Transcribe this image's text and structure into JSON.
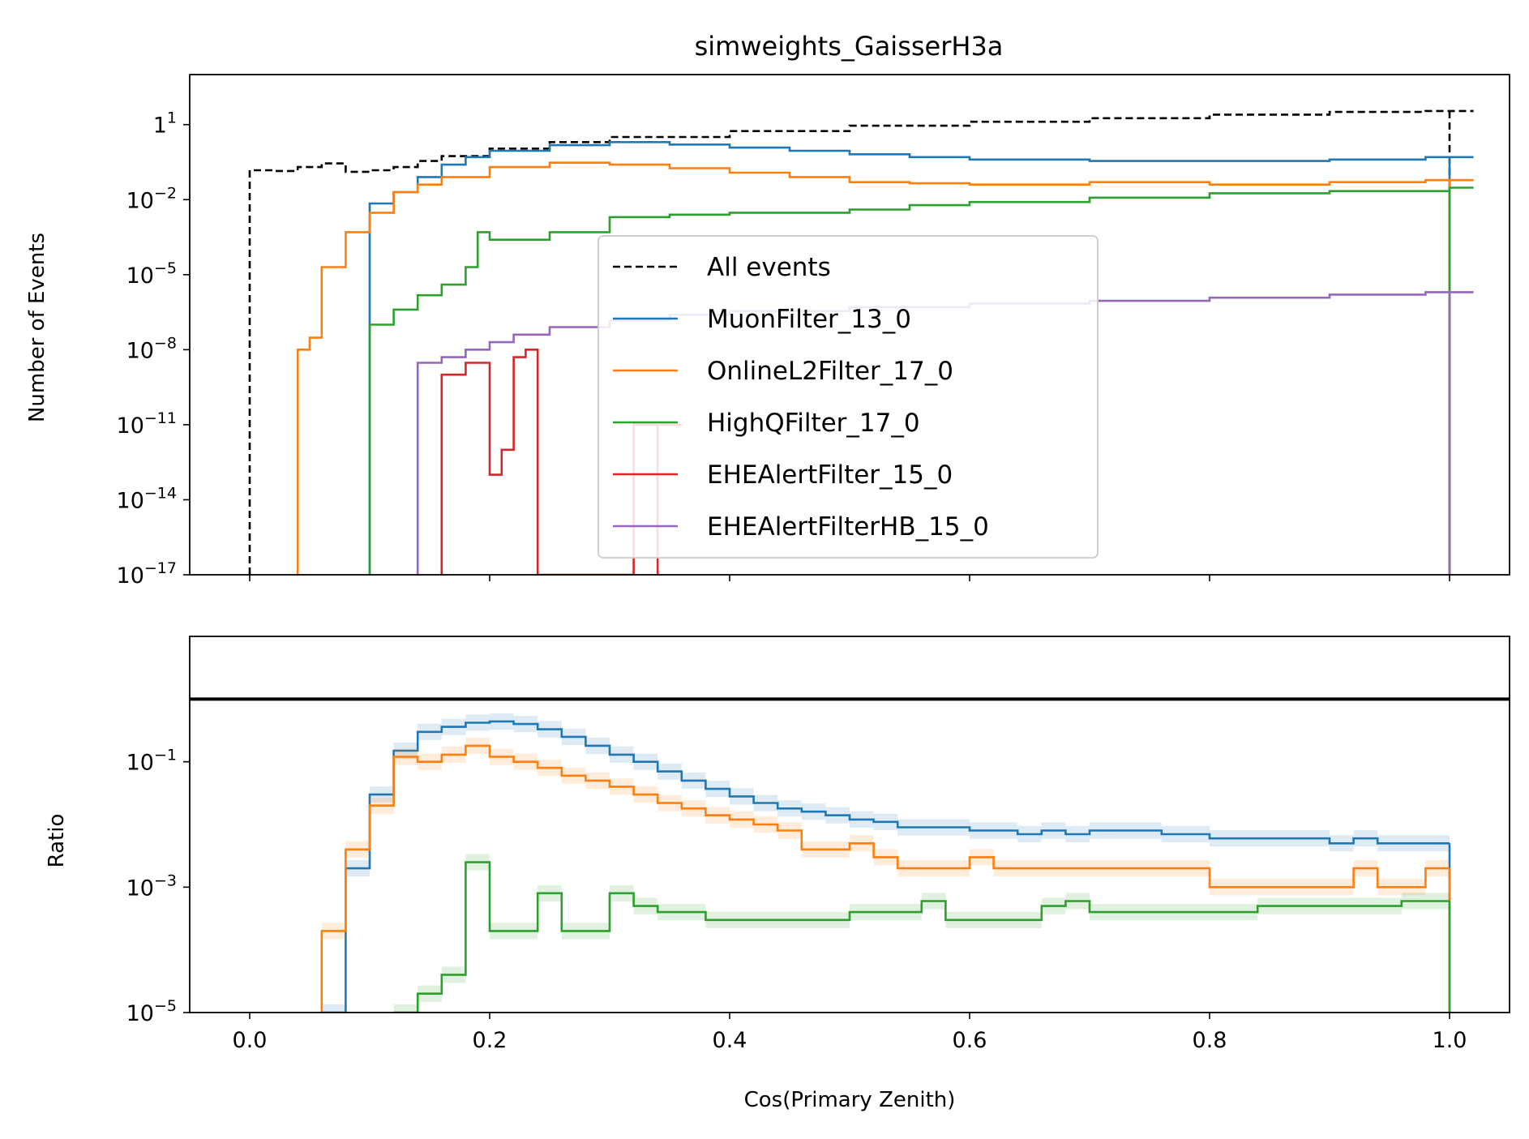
{
  "title": "simweights_GaisserH3a",
  "colors": {
    "all_events": "#000000",
    "MuonFilter_13_0": "#1f77b4",
    "OnlineL2Filter_17_0": "#ff7f0e",
    "HighQFilter_17_0": "#2ca02c",
    "EHEAlertFilter_15_0": "#d62728",
    "EHEAlertFilterHB_15_0": "#9467bd"
  },
  "chart_data": [
    {
      "type": "line",
      "panel": "top",
      "title": "simweights_GaisserH3a",
      "xlabel": "",
      "ylabel": "Number of Events",
      "yscale": "log",
      "xlim": [
        -0.05,
        1.05
      ],
      "ylim": [
        1e-17,
        1000
      ],
      "legend": "center",
      "yticks": [
        {
          "value": 10,
          "label": "1",
          "exp": "1"
        },
        {
          "value": 0.01,
          "label": "10",
          "exp": "−2"
        },
        {
          "value": 1e-05,
          "label": "10",
          "exp": "−5"
        },
        {
          "value": 1e-08,
          "label": "10",
          "exp": "−8"
        },
        {
          "value": 1e-11,
          "label": "10",
          "exp": "−11"
        },
        {
          "value": 1e-14,
          "label": "10",
          "exp": "−14"
        },
        {
          "value": 1e-17,
          "label": "10",
          "exp": "−17"
        }
      ],
      "xticks": [
        0.0,
        0.2,
        0.4,
        0.6,
        0.8,
        1.0
      ],
      "series": [
        {
          "name": "All events",
          "style": "dashed",
          "x": [
            0.0,
            0.02,
            0.04,
            0.06,
            0.08,
            0.1,
            0.12,
            0.14,
            0.16,
            0.2,
            0.25,
            0.3,
            0.4,
            0.5,
            0.6,
            0.7,
            0.8,
            0.9,
            0.98,
            1.0
          ],
          "y": [
            0.15,
            0.14,
            0.2,
            0.28,
            0.13,
            0.15,
            0.2,
            0.35,
            0.55,
            1.1,
            2.0,
            3.2,
            5.5,
            9.0,
            13,
            18,
            25,
            32,
            35,
            35
          ]
        },
        {
          "name": "MuonFilter_13_0",
          "style": "solid",
          "x": [
            0.1,
            0.12,
            0.14,
            0.16,
            0.18,
            0.2,
            0.25,
            0.3,
            0.35,
            0.4,
            0.45,
            0.5,
            0.55,
            0.6,
            0.7,
            0.8,
            0.9,
            0.98,
            1.0
          ],
          "y": [
            0.007,
            0.02,
            0.08,
            0.25,
            0.5,
            0.9,
            1.5,
            2.0,
            1.6,
            1.2,
            0.9,
            0.65,
            0.5,
            0.4,
            0.35,
            0.35,
            0.4,
            0.5,
            0.5
          ]
        },
        {
          "name": "OnlineL2Filter_17_0",
          "style": "solid",
          "x": [
            0.04,
            0.05,
            0.06,
            0.08,
            0.1,
            0.12,
            0.14,
            0.16,
            0.2,
            0.25,
            0.3,
            0.35,
            0.4,
            0.45,
            0.5,
            0.55,
            0.6,
            0.7,
            0.8,
            0.9,
            0.98,
            1.0
          ],
          "y": [
            1e-08,
            3e-08,
            2e-05,
            0.0005,
            0.003,
            0.02,
            0.04,
            0.08,
            0.2,
            0.3,
            0.25,
            0.18,
            0.12,
            0.08,
            0.05,
            0.045,
            0.04,
            0.05,
            0.04,
            0.05,
            0.06,
            0.06
          ]
        },
        {
          "name": "HighQFilter_17_0",
          "style": "solid",
          "x": [
            0.1,
            0.12,
            0.14,
            0.16,
            0.18,
            0.19,
            0.2,
            0.25,
            0.3,
            0.35,
            0.4,
            0.5,
            0.55,
            0.6,
            0.7,
            0.8,
            0.9,
            1.0
          ],
          "y": [
            1e-07,
            4e-07,
            1.5e-06,
            4e-06,
            2e-05,
            0.0005,
            0.00025,
            0.0005,
            0.002,
            0.0025,
            0.003,
            0.004,
            0.006,
            0.008,
            0.012,
            0.018,
            0.022,
            0.03
          ]
        },
        {
          "name": "EHEAlertFilter_15_0",
          "style": "solid",
          "x": [
            0.16,
            0.18,
            0.2,
            0.21,
            0.22,
            0.23,
            0.24,
            0.32,
            0.34
          ],
          "y": [
            1e-09,
            3e-09,
            1e-13,
            1e-12,
            5e-09,
            1e-08,
            1e-17,
            1e-11,
            1e-11
          ]
        },
        {
          "name": "EHEAlertFilterHB_15_0",
          "style": "solid",
          "x": [
            0.14,
            0.16,
            0.18,
            0.2,
            0.22,
            0.25,
            0.3,
            0.35,
            0.4,
            0.5,
            0.6,
            0.7,
            0.8,
            0.9,
            0.98,
            1.0
          ],
          "y": [
            3e-09,
            5e-09,
            1e-08,
            2e-08,
            4e-08,
            8e-08,
            1.5e-07,
            2.5e-07,
            3.5e-07,
            5e-07,
            7e-07,
            9e-07,
            1.2e-06,
            1.6e-06,
            2e-06,
            2e-06
          ]
        }
      ]
    },
    {
      "type": "line",
      "panel": "bottom",
      "xlabel": "Cos(Primary Zenith)",
      "ylabel": "Ratio",
      "yscale": "log",
      "xlim": [
        -0.05,
        1.05
      ],
      "ylim": [
        1e-05,
        10
      ],
      "yticks": [
        {
          "value": 0.1,
          "label": "10",
          "exp": "−1"
        },
        {
          "value": 0.001,
          "label": "10",
          "exp": "−3"
        },
        {
          "value": 1e-05,
          "label": "10",
          "exp": "−5"
        }
      ],
      "xticks": [
        0.0,
        0.2,
        0.4,
        0.6,
        0.8,
        1.0
      ],
      "reference_line": 1,
      "series": [
        {
          "name": "MuonFilter_13_0",
          "x": [
            0.06,
            0.08,
            0.1,
            0.12,
            0.14,
            0.16,
            0.18,
            0.2,
            0.22,
            0.24,
            0.26,
            0.28,
            0.3,
            0.32,
            0.34,
            0.36,
            0.38,
            0.4,
            0.42,
            0.44,
            0.46,
            0.48,
            0.5,
            0.52,
            0.54,
            0.56,
            0.58,
            0.6,
            0.62,
            0.64,
            0.66,
            0.68,
            0.7,
            0.72,
            0.74,
            0.76,
            0.78,
            0.8,
            0.82,
            0.84,
            0.86,
            0.88,
            0.9,
            0.92,
            0.94,
            0.96,
            0.98
          ],
          "y": [
            1e-05,
            0.002,
            0.03,
            0.15,
            0.3,
            0.36,
            0.42,
            0.44,
            0.4,
            0.33,
            0.25,
            0.18,
            0.13,
            0.1,
            0.07,
            0.05,
            0.037,
            0.028,
            0.022,
            0.018,
            0.016,
            0.014,
            0.012,
            0.011,
            0.009,
            0.009,
            0.009,
            0.008,
            0.008,
            0.007,
            0.008,
            0.007,
            0.008,
            0.008,
            0.008,
            0.007,
            0.007,
            0.006,
            0.006,
            0.006,
            0.006,
            0.006,
            0.005,
            0.006,
            0.005,
            0.005,
            0.005
          ]
        },
        {
          "name": "OnlineL2Filter_17_0",
          "x": [
            0.06,
            0.08,
            0.1,
            0.12,
            0.14,
            0.16,
            0.18,
            0.2,
            0.22,
            0.24,
            0.26,
            0.28,
            0.3,
            0.32,
            0.34,
            0.36,
            0.38,
            0.4,
            0.42,
            0.44,
            0.46,
            0.48,
            0.5,
            0.52,
            0.54,
            0.56,
            0.58,
            0.6,
            0.62,
            0.64,
            0.66,
            0.68,
            0.7,
            0.72,
            0.74,
            0.76,
            0.78,
            0.8,
            0.82,
            0.84,
            0.86,
            0.88,
            0.9,
            0.92,
            0.94,
            0.96,
            0.98
          ],
          "y": [
            0.0002,
            0.004,
            0.02,
            0.12,
            0.1,
            0.13,
            0.18,
            0.12,
            0.1,
            0.08,
            0.06,
            0.05,
            0.04,
            0.03,
            0.022,
            0.018,
            0.014,
            0.012,
            0.01,
            0.008,
            0.004,
            0.004,
            0.005,
            0.003,
            0.002,
            0.002,
            0.002,
            0.003,
            0.002,
            0.002,
            0.002,
            0.002,
            0.002,
            0.002,
            0.002,
            0.002,
            0.002,
            0.001,
            0.001,
            0.001,
            0.001,
            0.001,
            0.001,
            0.002,
            0.001,
            0.001,
            0.002
          ]
        },
        {
          "name": "HighQFilter_17_0",
          "x": [
            0.12,
            0.14,
            0.16,
            0.18,
            0.2,
            0.22,
            0.24,
            0.26,
            0.28,
            0.3,
            0.32,
            0.34,
            0.36,
            0.38,
            0.4,
            0.42,
            0.44,
            0.46,
            0.48,
            0.5,
            0.52,
            0.54,
            0.56,
            0.58,
            0.6,
            0.62,
            0.64,
            0.66,
            0.68,
            0.7,
            0.72,
            0.74,
            0.76,
            0.78,
            0.8,
            0.82,
            0.84,
            0.86,
            0.88,
            0.9,
            0.92,
            0.94,
            0.96,
            0.98
          ],
          "y": [
            1e-05,
            2e-05,
            4e-05,
            0.0025,
            0.0002,
            0.0002,
            0.0008,
            0.0002,
            0.0002,
            0.0008,
            0.0005,
            0.0004,
            0.0004,
            0.0003,
            0.0003,
            0.0003,
            0.0003,
            0.0003,
            0.0003,
            0.0004,
            0.0004,
            0.0004,
            0.0006,
            0.0003,
            0.0003,
            0.0003,
            0.0003,
            0.0005,
            0.0006,
            0.0004,
            0.0004,
            0.0004,
            0.0004,
            0.0004,
            0.0004,
            0.0004,
            0.0005,
            0.0005,
            0.0005,
            0.0005,
            0.0005,
            0.0005,
            0.0006,
            0.0006
          ]
        }
      ]
    }
  ]
}
